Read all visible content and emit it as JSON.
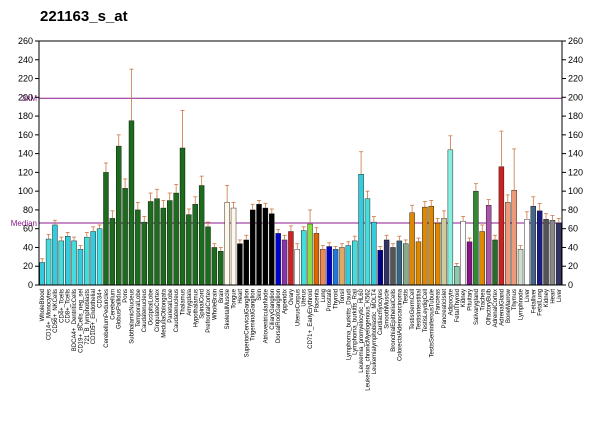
{
  "chart_data": {
    "type": "bar",
    "title": "221163_s_at",
    "xlabel": "",
    "ylabel": "",
    "ylim": [
      0,
      260
    ],
    "yticks": [
      0,
      20,
      40,
      60,
      80,
      100,
      120,
      140,
      160,
      180,
      200,
      220,
      240,
      260
    ],
    "grid": false,
    "reference_lines": [
      {
        "label": "3xM",
        "value": 199,
        "color": "#8b1a8b"
      },
      {
        "label": "Median",
        "value": 66,
        "color": "#8b1a8b"
      }
    ],
    "categories": [
      "WholeBlood",
      "CD14+_Monocytes",
      "CD56+_NKCells",
      "CD4+_Tcells",
      "CD8+_Tcells",
      "BDCA4+_DentriticCells",
      "CD19+_BCells_neg_sel",
      "721_B_lymphoblasts",
      "CD105+_Endothelial",
      "CD34+",
      "CerebellumPeduncles",
      "Cerebellum",
      "GlobusPallidus",
      "Pons",
      "SubthalamicNucleus",
      "TemporalLobe",
      "Caudatenucleus",
      "OccipitalLobe",
      "CingulateCortex",
      "MedullaOblongata",
      "ParietalLobe",
      "Caudatenucleus",
      "Thalamus",
      "Amygdala",
      "Hypothalamus",
      "SpinalCord",
      "PrefrontalCortex",
      "WholeBrain",
      "Brain",
      "SkeletalMuscle",
      "Tongue",
      "Heart",
      "SuperiorCervicalGanglion",
      "TrigeminalGanglion",
      "Skin",
      "AtrioventricularNode",
      "CiliaryGanglion",
      "DorsalRootGanglion",
      "Appendix",
      "Ovary",
      "UterusCorpus",
      "Uterus",
      "CD71+_EarlyErythroid",
      "Placenta",
      "Lung",
      "Prostate",
      "Thyroid",
      "Tonsil",
      "Lymphoma_burkitts_Daudi",
      "Lymphoma_burkitts_Raji",
      "Leukemia_promyelocytic_HL60",
      "Leukemia_chronicMyelogenous_K562",
      "Leukemialymphoblastic_MOLT4",
      "Cardiacmyocytes",
      "SmoothMuscle",
      "BronchialEpithelialCells",
      "ColorectalAdenocarcinoma",
      "Testis",
      "TestisGermCell",
      "TestisInterstitial",
      "TestisLeydigCell",
      "TestisSeminiferousTubule",
      "Pancreas",
      "PancreaticIslet",
      "Adipocyte",
      "FetalThyroid",
      "Kidney",
      "Pituitary",
      "Salivarygland",
      "Trachea",
      "OlfactoryBulb",
      "AdrenalCortex",
      "AdrenalGland",
      "BoneMarrow",
      "Thymus",
      "Lymphnode",
      "Liver",
      "Fetalliver",
      "FetalLung",
      "Kidney",
      "Heart",
      "Liver"
    ],
    "x_tick_labels": [
      "WholeBlood",
      "CD14+_Monocytes",
      "CD56+_NKCells",
      "CD4+_Tcells",
      "CD8+_Tcells",
      "BDCA4+_DentriticCells",
      "CD19+_BCells_neg_sel",
      "721_B_lymphoblasts",
      "CD105+_Endothelial",
      "CD34+",
      "CerebellumPeduncles",
      "Cerebellum",
      "GlobusPallidus",
      "Pons",
      "SubthalamicNucleus",
      "TemporalLobe",
      "Caudatenucleus",
      "OccipitalLobe",
      "CingulateCortex",
      "MedullaOblongata",
      "ParietalLobe",
      "Caudatenucleus",
      "Thalamus",
      "Amygdala",
      "Hypothalamus",
      "SpinalCord",
      "PrefrontalCortex",
      "WholeBrain",
      "Brain",
      "SkeletalMuscle",
      "Tongue",
      "Heart",
      "SuperiorCervicalGanglion",
      "TrigeminalGanglion",
      "Skin",
      "AtrioventricularNode",
      "CiliaryGanglion",
      "DorsalRootGanglion",
      "Appendix",
      "Ovary",
      "UterusCorpus",
      "Uterus",
      "CD71+_EarlyErythroid",
      "Placenta",
      "Lung",
      "Prostate",
      "Thyroid",
      "Tonsil",
      "Lymphoma_burkitts_Daudi",
      "Lymphoma_burkitts_Raji",
      "Leukemia_promyelocytic_HL60",
      "Leukemia_chronicMyelogenous_K562",
      "Leukemialymphoblastic_MOLT4",
      "Cardiacmyocytes",
      "SmoothMuscle",
      "BronchialEpithelialCells",
      "ColorectalAdenocarcinoma",
      "Testis",
      "TestisGermCell",
      "TestisInterstitial",
      "TestisLeydigCell",
      "TestisSeminiferousTubule",
      "Pancreas",
      "PancreaticIslet",
      "Adipocyte",
      "FetalThyroid",
      "Kidney",
      "Pituitary",
      "Salivarygland",
      "Trachea",
      "OlfactoryBulb",
      "AdrenalCortex",
      "AdrenalGland",
      "BoneMarrow",
      "Thymus",
      "Lymphnode",
      "Liver",
      "Fetalliver",
      "FetalLung",
      "Kidney",
      "Heart",
      "Liver"
    ],
    "values": [
      24,
      49,
      64,
      47,
      52,
      47,
      38,
      51,
      57,
      60,
      120,
      71,
      148,
      103,
      175,
      80,
      67,
      89,
      92,
      82,
      90,
      98,
      146,
      75,
      86,
      106,
      62,
      40,
      36,
      88,
      82,
      44,
      48,
      80,
      86,
      82,
      76,
      55,
      48,
      57,
      38,
      58,
      65,
      55,
      38,
      41,
      38,
      40,
      42,
      47,
      118,
      92,
      67,
      37,
      48,
      40,
      47,
      44,
      77,
      46,
      83,
      84,
      66,
      71,
      144,
      20,
      68,
      46,
      100,
      57,
      85,
      48,
      126,
      88,
      101,
      38,
      70,
      84,
      79,
      70,
      69,
      66
    ],
    "errors": [
      4,
      5,
      5,
      4,
      4,
      4,
      4,
      5,
      5,
      4,
      10,
      8,
      12,
      10,
      55,
      8,
      6,
      9,
      10,
      8,
      8,
      9,
      40,
      6,
      8,
      10,
      5,
      4,
      4,
      18,
      6,
      4,
      5,
      6,
      4,
      5,
      5,
      4,
      5,
      6,
      6,
      4,
      15,
      6,
      4,
      4,
      3,
      4,
      4,
      5,
      24,
      8,
      6,
      4,
      5,
      4,
      5,
      4,
      8,
      4,
      6,
      6,
      5,
      8,
      15,
      3,
      5,
      4,
      8,
      7,
      6,
      5,
      38,
      8,
      44,
      4,
      8,
      10,
      8,
      6,
      5,
      5
    ],
    "bar_colors": [
      "#33ccdd",
      "#44dddd",
      "#33ccdd",
      "#44dddd",
      "#33ccdd",
      "#44dddd",
      "#33ccdd",
      "#44dddd",
      "#33ccdd",
      "#44dddd",
      "#1d6b1d",
      "#1d6b1d",
      "#1d6b1d",
      "#1d6b1d",
      "#1d6b1d",
      "#1d6b1d",
      "#1d6b1d",
      "#1d6b1d",
      "#1d6b1d",
      "#1d6b1d",
      "#1d6b1d",
      "#1d6b1d",
      "#1d6b1d",
      "#1d6b1d",
      "#1d6b1d",
      "#1d6b1d",
      "#1d6b1d",
      "#1d6b1d",
      "#1d6b1d",
      "#fff8e8",
      "#fff8e8",
      "#000000",
      "#000000",
      "#000000",
      "#000000",
      "#000000",
      "#000000",
      "#0000cc",
      "#8833aa",
      "#cc2222",
      "#ffffff",
      "#44dddd",
      "#88dd44",
      "#dd6600",
      "#ee8855",
      "#0000cc",
      "#2277dd",
      "#ddaa66",
      "#33ccdd",
      "#44dddd",
      "#33ccdd",
      "#44dddd",
      "#33ccdd",
      "#000088",
      "#333366",
      "#555555",
      "#336688",
      "#88aa88",
      "#dd8800",
      "#dd8800",
      "#dd8800",
      "#dd8800",
      "#dd8800",
      "#cccc99",
      "#88eedd",
      "#88ccaa",
      "#ffffff",
      "#881188",
      "#338833",
      "#dd8800",
      "#aa55aa",
      "#2a6b2a",
      "#cc2222",
      "#ee9977",
      "#ee9977",
      "#ccddcc",
      "#ffffff",
      "#446688",
      "#1a1a88",
      "#555555",
      "#888888",
      "#333366"
    ],
    "highlight_color": "#8b1a8b",
    "error_bar_color": "#cc7744"
  }
}
